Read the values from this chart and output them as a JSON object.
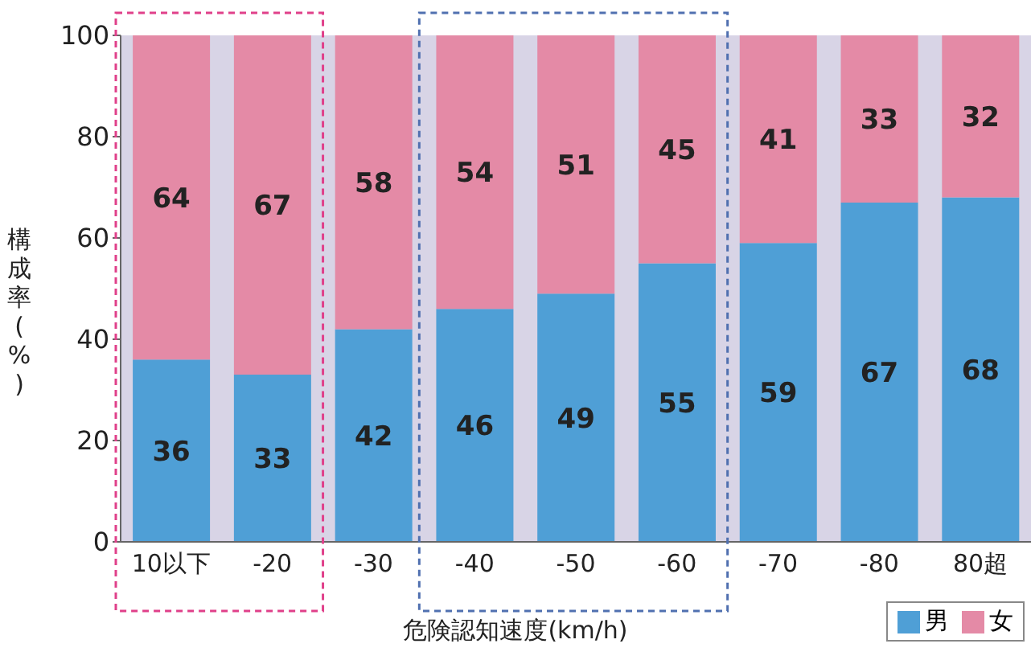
{
  "chart_data": {
    "type": "bar",
    "stacked": true,
    "xlabel": "危険認知速度(km/h)",
    "ylabel": "構成率(%)",
    "categories": [
      "10以下",
      "-20",
      "-30",
      "-40",
      "-50",
      "-60",
      "-70",
      "-80",
      "80超"
    ],
    "series": [
      {
        "name": "男",
        "color": "#4f9fd6",
        "values": [
          36,
          33,
          42,
          46,
          49,
          55,
          59,
          67,
          68
        ]
      },
      {
        "name": "女",
        "color": "#e48aa6",
        "values": [
          64,
          67,
          58,
          54,
          51,
          45,
          41,
          33,
          32
        ]
      }
    ],
    "ylim": [
      0,
      100
    ],
    "yticks": [
      0,
      20,
      40,
      60,
      80,
      100
    ],
    "grid": false,
    "legend": "bottom right",
    "data_labels": true
  }
}
